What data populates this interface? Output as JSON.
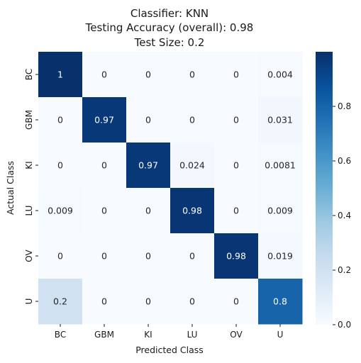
{
  "chart_data": {
    "type": "heatmap",
    "title_lines": [
      "Classifier: KNN",
      "Testing Accuracy (overall): 0.98",
      "Test Size: 0.2"
    ],
    "xlabel": "Predicted Class",
    "ylabel": "Actual Class",
    "x_categories": [
      "BC",
      "GBM",
      "KI",
      "LU",
      "OV",
      "U"
    ],
    "y_categories": [
      "BC",
      "GBM",
      "KI",
      "LU",
      "OV",
      "U"
    ],
    "values": [
      [
        1,
        0,
        0,
        0,
        0,
        0.004
      ],
      [
        0,
        0.97,
        0,
        0,
        0,
        0.031
      ],
      [
        0,
        0,
        0.97,
        0.024,
        0,
        0.0081
      ],
      [
        0.009,
        0,
        0,
        0.98,
        0,
        0.009
      ],
      [
        0,
        0,
        0,
        0,
        0.98,
        0.019
      ],
      [
        0.2,
        0,
        0,
        0,
        0,
        0.8
      ]
    ],
    "cell_labels": [
      [
        "1",
        "0",
        "0",
        "0",
        "0",
        "0.004"
      ],
      [
        "0",
        "0.97",
        "0",
        "0",
        "0",
        "0.031"
      ],
      [
        "0",
        "0",
        "0.97",
        "0.024",
        "0",
        "0.0081"
      ],
      [
        "0.009",
        "0",
        "0",
        "0.98",
        "0",
        "0.009"
      ],
      [
        "0",
        "0",
        "0",
        "0",
        "0.98",
        "0.019"
      ],
      [
        "0.2",
        "0",
        "0",
        "0",
        "0",
        "0.8"
      ]
    ],
    "colormap": "Blues",
    "colorbar": {
      "range": [
        0,
        1
      ],
      "ticks": [
        0.0,
        0.2,
        0.4,
        0.6,
        0.8
      ],
      "tick_labels": [
        "0.0",
        "0.2",
        "0.4",
        "0.6",
        "0.8"
      ]
    }
  }
}
